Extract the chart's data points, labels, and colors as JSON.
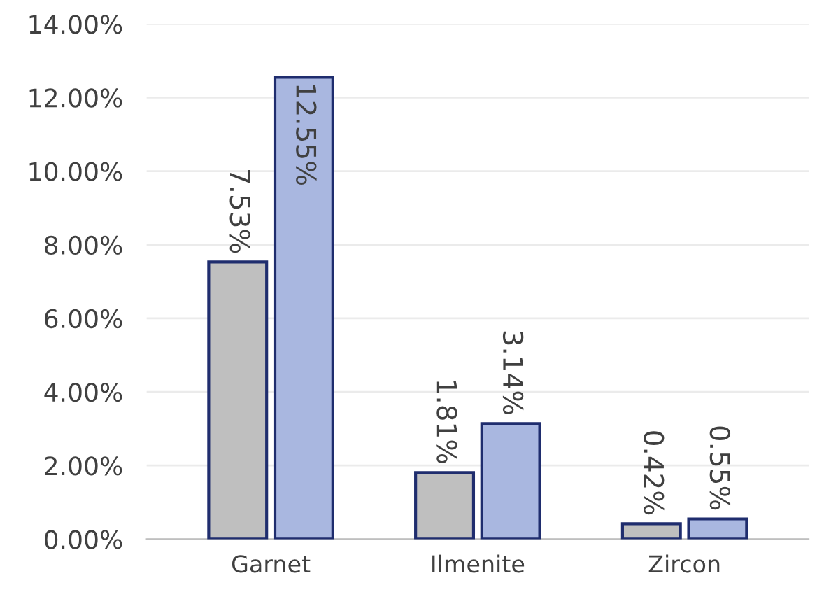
{
  "chart_data": {
    "type": "bar",
    "categories": [
      "Garnet",
      "Ilmenite",
      "Zircon"
    ],
    "series": [
      {
        "color": "#bfbfbf",
        "values": [
          7.53,
          1.81,
          0.42
        ],
        "value_labels": [
          "7.53%",
          "1.81%",
          "0.42%"
        ]
      },
      {
        "color": "#a9b7e0",
        "values": [
          12.55,
          3.14,
          0.55
        ],
        "value_labels": [
          "12.55%",
          "3.14%",
          "0.55%"
        ]
      }
    ],
    "ylim": [
      0,
      14
    ],
    "yticks": [
      {
        "value": 0,
        "label": "0.00%"
      },
      {
        "value": 2,
        "label": "2.00%"
      },
      {
        "value": 4,
        "label": "4.00%"
      },
      {
        "value": 6,
        "label": "6.00%"
      },
      {
        "value": 8,
        "label": "8.00%"
      },
      {
        "value": 10,
        "label": "10.00%"
      },
      {
        "value": 12,
        "label": "12.00%"
      },
      {
        "value": 14,
        "label": "14.00%"
      }
    ],
    "grid": "y"
  }
}
